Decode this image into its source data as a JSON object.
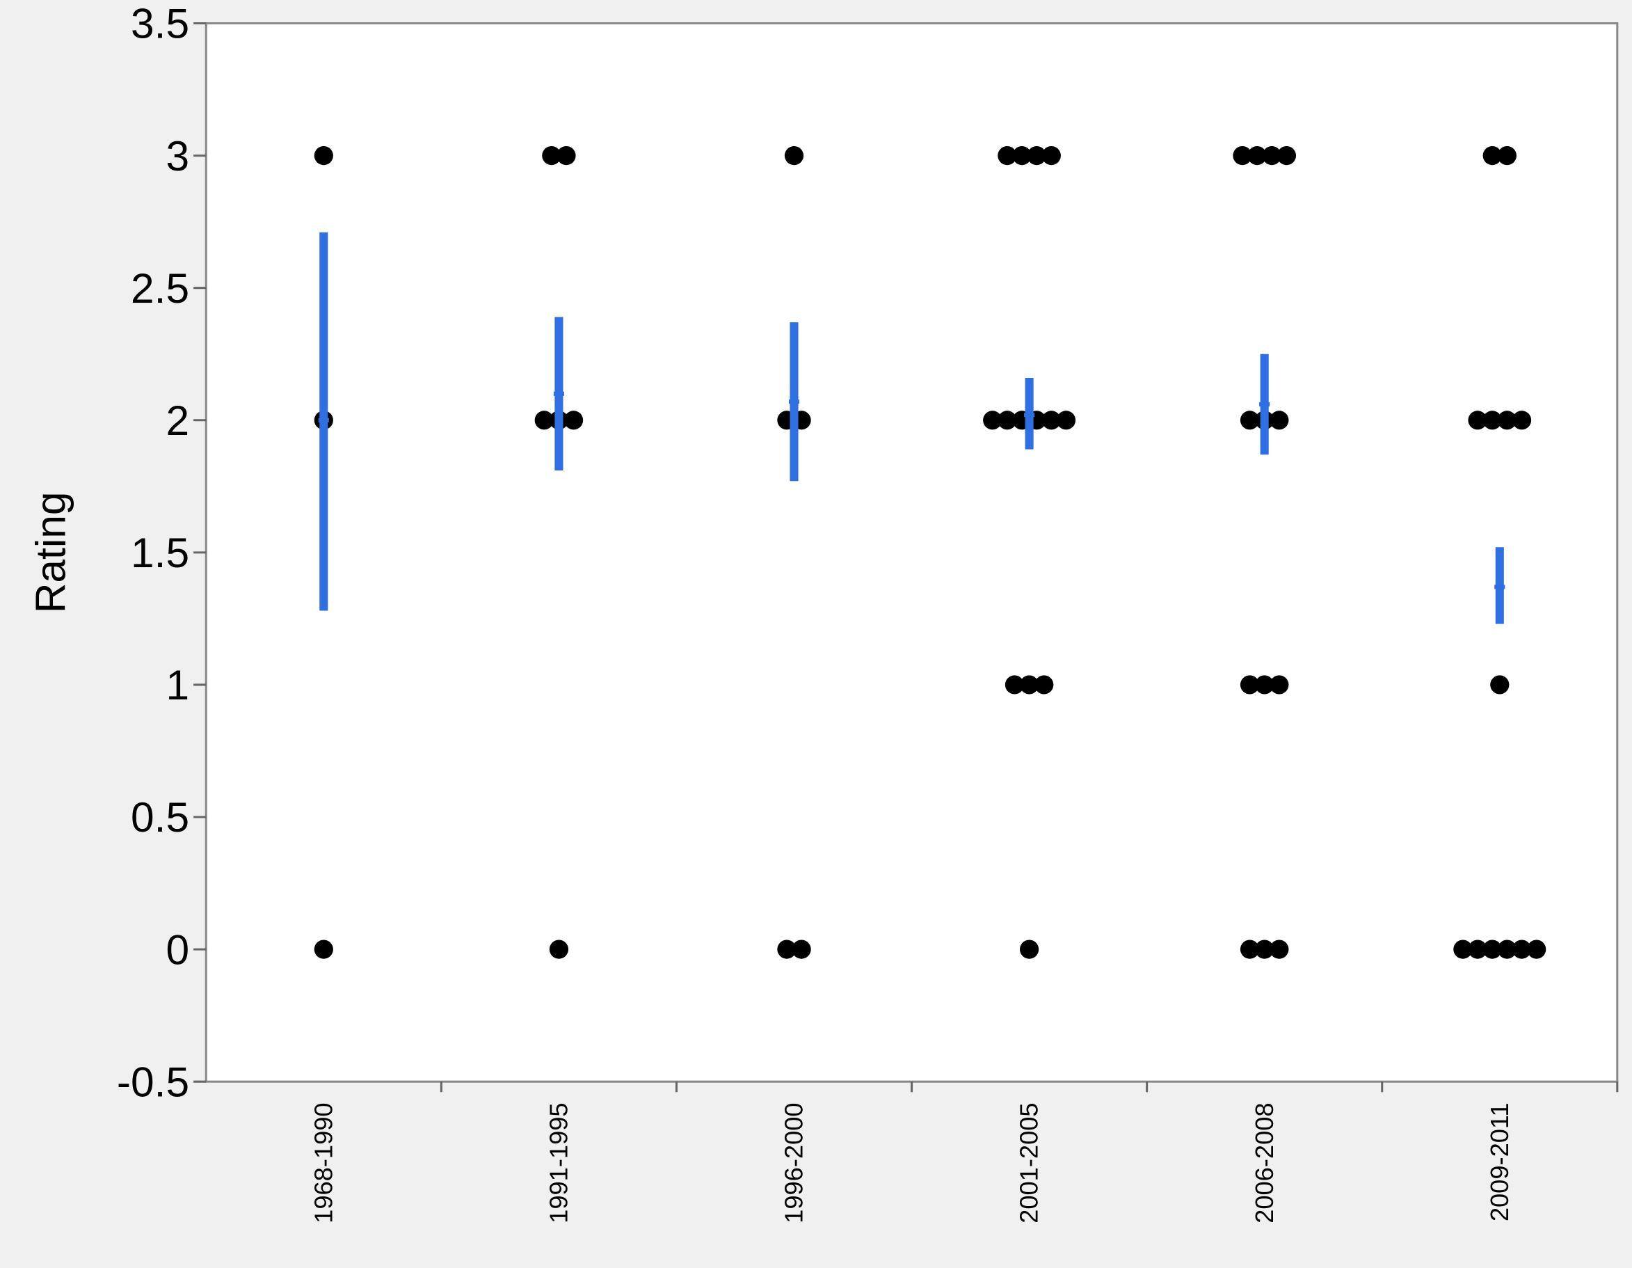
{
  "chart_data": {
    "type": "dot-errorbar",
    "y_label": "Rating",
    "categories": [
      "1968-1990",
      "1991-1995",
      "1996-2000",
      "2001-2005",
      "2006-2008",
      "2009-2011"
    ],
    "points": [
      [
        3,
        2,
        0
      ],
      [
        3,
        3,
        2,
        2,
        2,
        0
      ],
      [
        3,
        2,
        2,
        0,
        0
      ],
      [
        3,
        3,
        3,
        3,
        2,
        2,
        2,
        2,
        2,
        2,
        1,
        1,
        1,
        0
      ],
      [
        3,
        3,
        3,
        3,
        2,
        2,
        2,
        1,
        1,
        1,
        0,
        0,
        0
      ],
      [
        3,
        3,
        2,
        2,
        2,
        2,
        1,
        0,
        0,
        0,
        0,
        0,
        0
      ]
    ],
    "point_color": "#000000",
    "means": [
      2.0,
      2.1,
      2.07,
      2.02,
      2.06,
      1.37
    ],
    "lower": [
      1.28,
      1.81,
      1.77,
      1.89,
      1.87,
      1.23
    ],
    "upper": [
      2.71,
      2.39,
      2.37,
      2.16,
      2.25,
      1.52
    ],
    "error_color": "#2f6fdf",
    "ylim": [
      -0.5,
      3.5
    ],
    "yticks": [
      -0.5,
      0,
      0.5,
      1,
      1.5,
      2,
      2.5,
      3,
      3.5
    ]
  }
}
